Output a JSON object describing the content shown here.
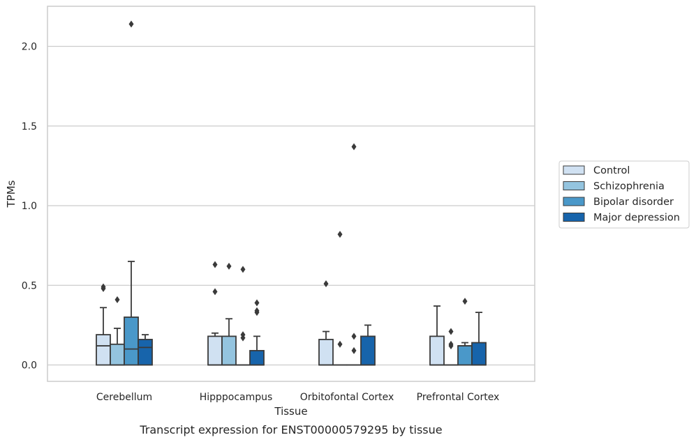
{
  "chart_data": {
    "type": "box",
    "title": "",
    "caption": "Transcript expression for ENST00000579295 by tissue",
    "xlabel": "Tissue",
    "ylabel": "TPMs",
    "ylim": [
      -0.1,
      2.25
    ],
    "yticks": [
      0.0,
      0.5,
      1.0,
      1.5,
      2.0
    ],
    "ytick_labels": [
      "0.0",
      "0.5",
      "1.0",
      "1.5",
      "2.0"
    ],
    "grid": "horizontal",
    "legend_position": "right",
    "categories": [
      "Cerebellum",
      "Hipppocampus",
      "Orbitofontal Cortex",
      "Prefrontal Cortex"
    ],
    "series": [
      {
        "name": "Control",
        "color": "#d0e1f2",
        "boxes": [
          {
            "q1": 0.0,
            "median": 0.12,
            "q3": 0.19,
            "whisker_low": 0.0,
            "whisker_high": 0.36,
            "outliers": [
              0.48,
              0.49
            ]
          },
          {
            "q1": 0.0,
            "median": 0.0,
            "q3": 0.18,
            "whisker_low": 0.0,
            "whisker_high": 0.2,
            "outliers": [
              0.46,
              0.63
            ]
          },
          {
            "q1": 0.0,
            "median": 0.0,
            "q3": 0.16,
            "whisker_low": 0.0,
            "whisker_high": 0.21,
            "outliers": [
              0.51
            ]
          },
          {
            "q1": 0.0,
            "median": 0.0,
            "q3": 0.18,
            "whisker_low": 0.0,
            "whisker_high": 0.37,
            "outliers": []
          }
        ]
      },
      {
        "name": "Schizophrenia",
        "color": "#94c4df",
        "boxes": [
          {
            "q1": 0.0,
            "median": 0.0,
            "q3": 0.13,
            "whisker_low": 0.0,
            "whisker_high": 0.23,
            "outliers": [
              0.41
            ]
          },
          {
            "q1": 0.0,
            "median": 0.0,
            "q3": 0.18,
            "whisker_low": 0.0,
            "whisker_high": 0.29,
            "outliers": [
              0.62
            ]
          },
          {
            "q1": 0.0,
            "median": 0.0,
            "q3": 0.0,
            "whisker_low": 0.0,
            "whisker_high": 0.0,
            "outliers": [
              0.13,
              0.82
            ]
          },
          {
            "q1": 0.0,
            "median": 0.0,
            "q3": 0.0,
            "whisker_low": 0.0,
            "whisker_high": 0.0,
            "outliers": [
              0.12,
              0.13,
              0.21
            ]
          }
        ]
      },
      {
        "name": "Bipolar disorder",
        "color": "#4a98c9",
        "boxes": [
          {
            "q1": 0.0,
            "median": 0.1,
            "q3": 0.3,
            "whisker_low": 0.0,
            "whisker_high": 0.65,
            "outliers": [
              2.14
            ]
          },
          {
            "q1": 0.0,
            "median": 0.0,
            "q3": 0.0,
            "whisker_low": 0.0,
            "whisker_high": 0.0,
            "outliers": [
              0.17,
              0.19,
              0.6
            ]
          },
          {
            "q1": 0.0,
            "median": 0.0,
            "q3": 0.0,
            "whisker_low": 0.0,
            "whisker_high": 0.0,
            "outliers": [
              0.09,
              0.18,
              1.37
            ]
          },
          {
            "q1": 0.0,
            "median": 0.12,
            "q3": 0.12,
            "whisker_low": 0.0,
            "whisker_high": 0.14,
            "outliers": [
              0.4
            ]
          }
        ]
      },
      {
        "name": "Major depression",
        "color": "#1764ab",
        "boxes": [
          {
            "q1": 0.0,
            "median": 0.11,
            "q3": 0.16,
            "whisker_low": 0.0,
            "whisker_high": 0.19,
            "outliers": []
          },
          {
            "q1": 0.0,
            "median": 0.0,
            "q3": 0.09,
            "whisker_low": 0.0,
            "whisker_high": 0.18,
            "outliers": [
              0.33,
              0.34,
              0.39
            ]
          },
          {
            "q1": 0.0,
            "median": 0.0,
            "q3": 0.18,
            "whisker_low": 0.0,
            "whisker_high": 0.25,
            "outliers": []
          },
          {
            "q1": 0.0,
            "median": 0.0,
            "q3": 0.14,
            "whisker_low": 0.0,
            "whisker_high": 0.33,
            "outliers": []
          }
        ]
      }
    ]
  }
}
